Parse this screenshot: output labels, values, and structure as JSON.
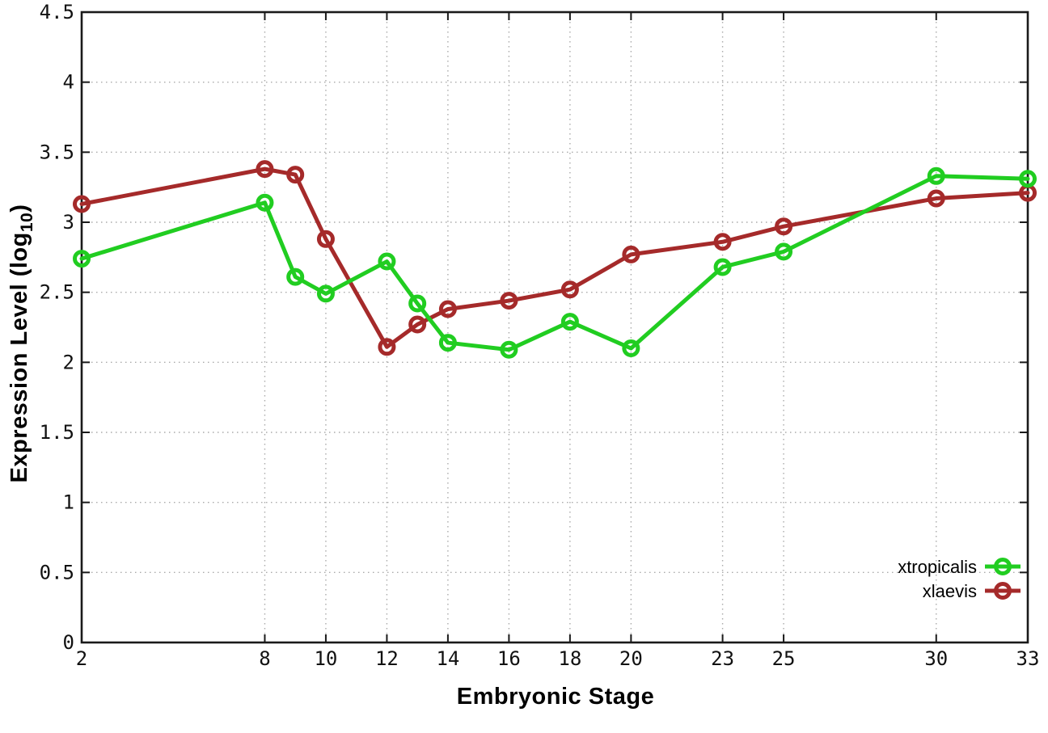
{
  "page": {
    "background": "#ffffff"
  },
  "chart_data": {
    "type": "line",
    "title": "",
    "xlabel": "Embryonic Stage",
    "ylabel": "Expression Level (log10)",
    "ylabel_parts": {
      "prefix": "Expression Level (log",
      "sub": "10",
      "suffix": ")"
    },
    "xlim": [
      2,
      33
    ],
    "ylim": [
      0,
      4.5
    ],
    "xticks": [
      2,
      8,
      10,
      12,
      14,
      16,
      18,
      20,
      23,
      25,
      30,
      33
    ],
    "yticks": [
      0,
      0.5,
      1,
      1.5,
      2,
      2.5,
      3,
      3.5,
      4,
      4.5
    ],
    "ytick_labels": [
      "0",
      "0.5",
      "1",
      "1.5",
      "2",
      "2.5",
      "3",
      "3.5",
      "4",
      "4.5"
    ],
    "grid": true,
    "grid_style": "dotted",
    "border": true,
    "legend_position": "bottom-right",
    "marker": "open-circle",
    "colors": {
      "frame": "#1a1a1a",
      "grid": "#aaaaaa",
      "tick_text": "#111111"
    },
    "series": [
      {
        "name": "xtropicalis",
        "color": "#21cd21",
        "points": [
          [
            2,
            2.74
          ],
          [
            8,
            3.14
          ],
          [
            9,
            2.61
          ],
          [
            10,
            2.49
          ],
          [
            12,
            2.72
          ],
          [
            13,
            2.42
          ],
          [
            14,
            2.14
          ],
          [
            16,
            2.09
          ],
          [
            18,
            2.29
          ],
          [
            20,
            2.1
          ],
          [
            23,
            2.68
          ],
          [
            25,
            2.79
          ],
          [
            30,
            3.33
          ],
          [
            33,
            3.31
          ]
        ]
      },
      {
        "name": "xlaevis",
        "color": "#a52a2a",
        "points": [
          [
            2,
            3.13
          ],
          [
            8,
            3.38
          ],
          [
            9,
            3.34
          ],
          [
            10,
            2.88
          ],
          [
            12,
            2.11
          ],
          [
            13,
            2.27
          ],
          [
            14,
            2.38
          ],
          [
            16,
            2.44
          ],
          [
            18,
            2.52
          ],
          [
            20,
            2.77
          ],
          [
            23,
            2.86
          ],
          [
            25,
            2.97
          ],
          [
            30,
            3.17
          ],
          [
            33,
            3.21
          ]
        ]
      }
    ]
  }
}
